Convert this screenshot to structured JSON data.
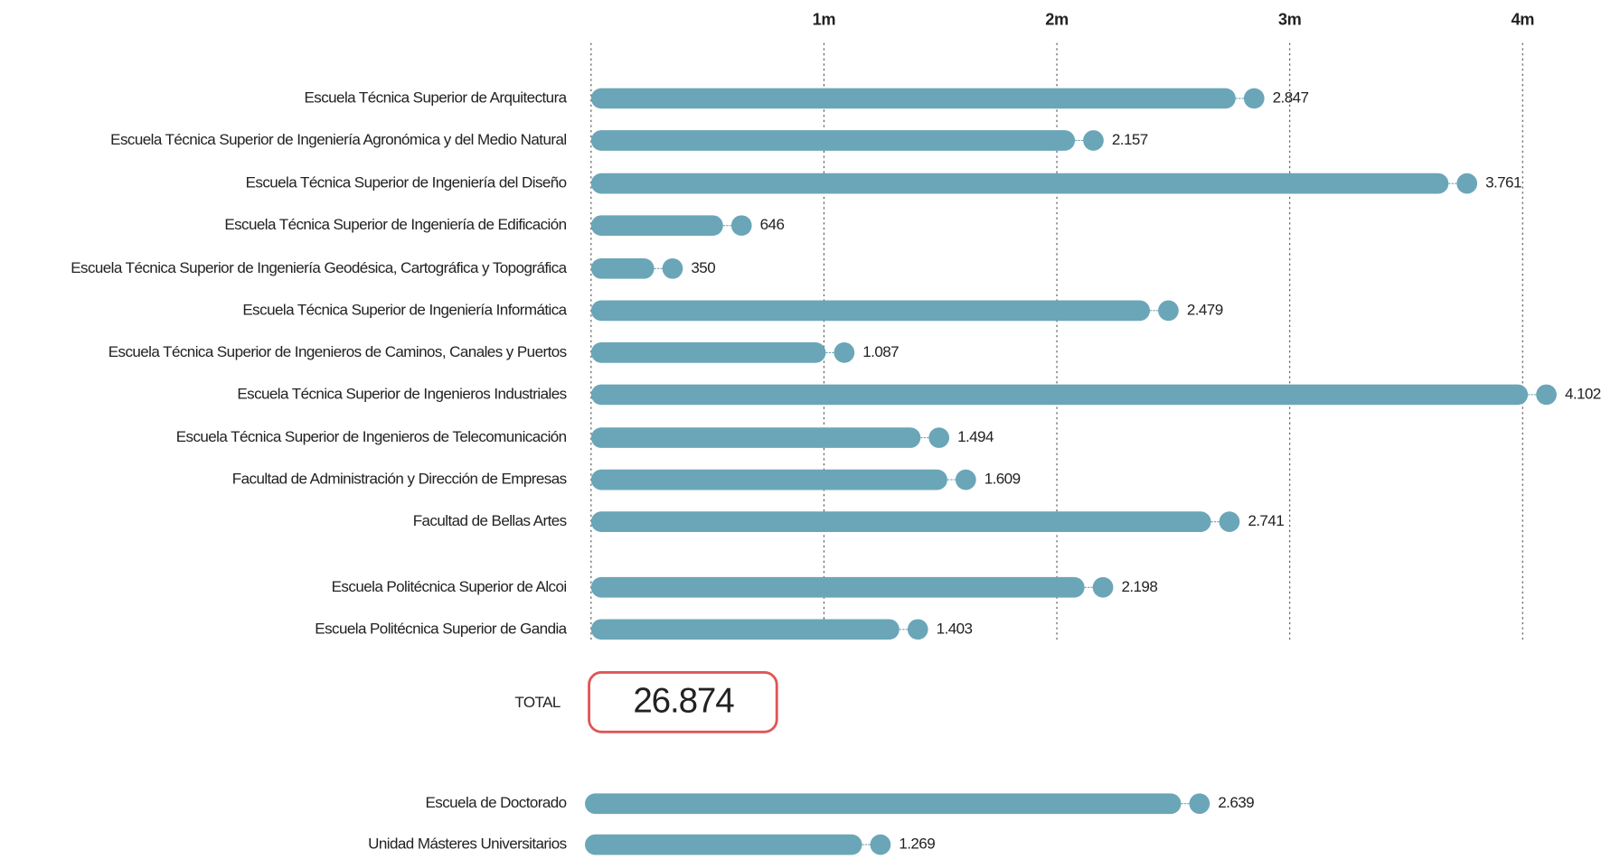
{
  "chart_data": [
    {
      "type": "bar",
      "orientation": "horizontal",
      "color": "#6aa6b8",
      "categories": [
        "Escuela Técnica Superior de Arquitectura",
        "Escuela Técnica Superior de Ingeniería Agronómica y del Medio Natural",
        "Escuela Técnica Superior de Ingeniería del Diseño",
        "Escuela Técnica Superior de Ingeniería de Edificación",
        "Escuela Técnica Superior de Ingeniería Geodésica, Cartográfica y Topográfica",
        "Escuela Técnica Superior de Ingeniería Informática",
        "Escuela Técnica Superior de Ingenieros de Caminos, Canales y Puertos",
        "Escuela Técnica Superior de Ingenieros Industriales",
        "Escuela Técnica Superior de Ingenieros de Telecomunicación",
        "Facultad de Administración y Dirección de Empresas",
        "Facultad de Bellas Artes",
        "Escuela Politécnica Superior de Alcoi",
        "Escuela Politécnica Superior de Gandia"
      ],
      "values": [
        2847,
        2157,
        3761,
        646,
        350,
        2479,
        1087,
        4102,
        1494,
        1609,
        2741,
        2198,
        1403
      ],
      "value_labels": [
        "2.847",
        "2.157",
        "3.761",
        "646",
        "350",
        "2.479",
        "1.087",
        "4.102",
        "1.494",
        "1.609",
        "2.741",
        "2.198",
        "1.403"
      ],
      "xlim": [
        0,
        4000
      ],
      "xticks": [
        {
          "value": 1000,
          "label": "1m"
        },
        {
          "value": 2000,
          "label": "2m"
        },
        {
          "value": 3000,
          "label": "3m"
        },
        {
          "value": 4000,
          "label": "4m"
        }
      ],
      "grid": true
    },
    {
      "type": "bar",
      "orientation": "horizontal",
      "color": "#6aa6b8",
      "categories": [
        "Escuela de Doctorado",
        "Unidad Másteres Universitarios"
      ],
      "values": [
        2639,
        1269
      ],
      "value_labels": [
        "2.639",
        "1.269"
      ],
      "xlim": [
        0,
        4000
      ]
    }
  ],
  "total": {
    "label": "TOTAL",
    "value": "26.874"
  }
}
